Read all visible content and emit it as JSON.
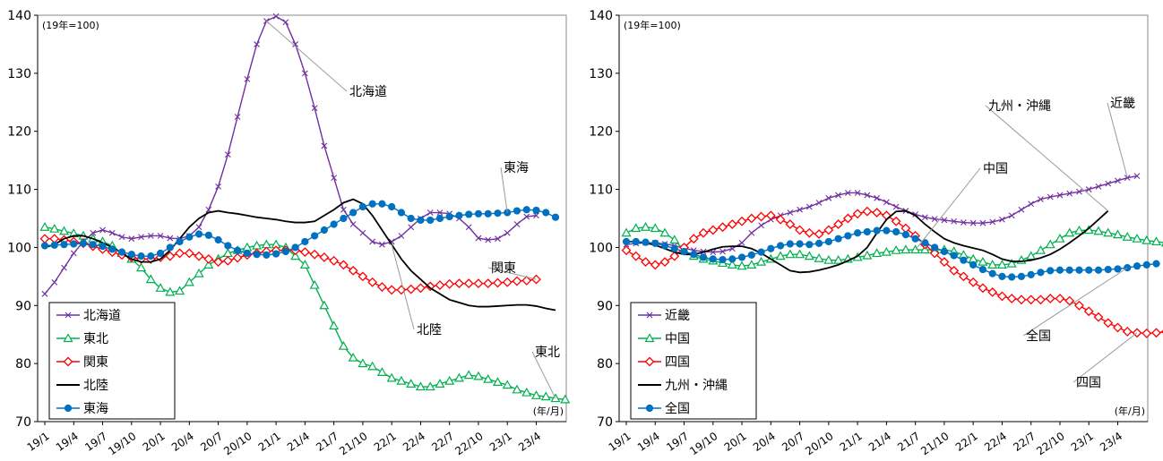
{
  "chart_data": [
    {
      "type": "line",
      "unit_note": "(19年=100)",
      "x_unit": "(年/月)",
      "ylim": [
        70,
        140
      ],
      "yticks": [
        70,
        80,
        90,
        100,
        110,
        120,
        130,
        140
      ],
      "grid": false,
      "legend_position": "bottom-left",
      "x_tick_labels": [
        "19/1",
        "19/4",
        "19/7",
        "19/10",
        "20/1",
        "20/4",
        "20/7",
        "20/10",
        "21/1",
        "21/4",
        "21/7",
        "21/10",
        "22/1",
        "22/4",
        "22/7",
        "22/10",
        "23/1",
        "23/4"
      ],
      "series": [
        {
          "name": "北海道",
          "color": "#7030a0",
          "marker": "x",
          "values": [
            92,
            94,
            96.5,
            99,
            101,
            102.5,
            103,
            102.5,
            101.8,
            101.5,
            101.8,
            102,
            102,
            101.6,
            101.5,
            102,
            103.5,
            106.5,
            110.5,
            116,
            122.5,
            129,
            135,
            139,
            139.8,
            138.8,
            135,
            130,
            124,
            117.5,
            112,
            106.5,
            104,
            102.5,
            101,
            100.5,
            101,
            102,
            103.5,
            105,
            106,
            106,
            105.8,
            105,
            103.5,
            101.6,
            101.3,
            101.5,
            102.5,
            104,
            105.3,
            105.5
          ]
        },
        {
          "name": "東北",
          "color": "#00b050",
          "marker": "triangle",
          "values": [
            103.5,
            103.2,
            102.8,
            102.4,
            102,
            101.5,
            101,
            100.3,
            99,
            98,
            96.5,
            94.5,
            93,
            92.3,
            92.5,
            94,
            95.5,
            97,
            98,
            99,
            99.5,
            100,
            100.3,
            100.5,
            100.5,
            100,
            98.5,
            97,
            93.5,
            90,
            86.5,
            83,
            81,
            80,
            79.5,
            78.5,
            77.5,
            77,
            76.5,
            76,
            76,
            76.5,
            77,
            77.5,
            78,
            77.8,
            77.3,
            76.8,
            76.3,
            75.5,
            75,
            74.5,
            74.3,
            74,
            73.8
          ]
        },
        {
          "name": "関東",
          "color": "#ff0000",
          "marker": "diamond",
          "values": [
            101.5,
            101.5,
            101.3,
            101,
            100.7,
            100.2,
            99.7,
            99.2,
            98.7,
            98.3,
            98,
            98,
            98.3,
            98.5,
            99,
            99,
            98.5,
            98,
            97.5,
            97.7,
            98.2,
            98.7,
            99,
            99.3,
            99.5,
            99.5,
            99.5,
            99.2,
            98.8,
            98.3,
            97.7,
            97,
            96,
            95,
            94,
            93.2,
            92.7,
            92.7,
            92.8,
            93,
            93.3,
            93.5,
            93.7,
            93.8,
            93.8,
            93.8,
            93.8,
            93.9,
            94,
            94.2,
            94.3,
            94.5
          ]
        },
        {
          "name": "北陸",
          "color": "#000000",
          "marker": "none",
          "values": [
            100,
            100.5,
            101.5,
            102,
            102,
            101.5,
            100.8,
            100,
            99,
            98,
            97.5,
            97.5,
            98,
            99.5,
            101.5,
            103.5,
            105,
            106,
            106.3,
            106,
            105.8,
            105.5,
            105.2,
            105,
            104.8,
            104.5,
            104.3,
            104.3,
            104.5,
            105.5,
            106.5,
            107.7,
            108.3,
            107.5,
            105.5,
            103,
            100.5,
            98,
            96,
            94.5,
            93,
            92,
            91,
            90.5,
            90,
            89.8,
            89.8,
            89.9,
            90,
            90.1,
            90.1,
            89.9,
            89.5,
            89.2
          ]
        },
        {
          "name": "東海",
          "color": "#0070c0",
          "marker": "circle",
          "values": [
            100.3,
            100.4,
            100.5,
            100.6,
            100.7,
            100.5,
            100.2,
            99.7,
            99.2,
            98.8,
            98.5,
            98.5,
            99,
            100,
            101,
            101.8,
            102.3,
            102.1,
            101.3,
            100.3,
            99.5,
            99,
            98.8,
            98.7,
            98.9,
            99.3,
            100,
            101,
            102,
            103,
            104,
            105,
            106,
            107,
            107.5,
            107.5,
            107,
            106,
            105,
            104.7,
            104.7,
            105,
            105.3,
            105.5,
            105.7,
            105.8,
            105.8,
            105.9,
            106,
            106.3,
            106.5,
            106.4,
            106,
            105.2
          ]
        }
      ],
      "callouts": [
        "北海道",
        "東海",
        "関東",
        "北陸",
        "東北"
      ]
    },
    {
      "type": "line",
      "unit_note": "(19年=100)",
      "x_unit": "(年/月)",
      "ylim": [
        70,
        140
      ],
      "yticks": [
        70,
        80,
        90,
        100,
        110,
        120,
        130,
        140
      ],
      "grid": false,
      "legend_position": "bottom-left",
      "x_tick_labels": [
        "19/1",
        "19/4",
        "19/7",
        "19/10",
        "20/1",
        "20/4",
        "20/7",
        "20/10",
        "21/1",
        "21/4",
        "21/7",
        "21/10",
        "22/1",
        "22/4",
        "22/7",
        "22/10",
        "23/1",
        "23/4"
      ],
      "series": [
        {
          "name": "近畿",
          "color": "#7030a0",
          "marker": "x",
          "values": [
            100.5,
            100.7,
            100.8,
            100.8,
            100.6,
            100.3,
            99.9,
            99.5,
            99.3,
            99.2,
            99.3,
            99.8,
            100.8,
            102.5,
            103.8,
            104.8,
            105.5,
            106,
            106.5,
            107,
            107.7,
            108.5,
            109,
            109.4,
            109.4,
            109,
            108.5,
            107.8,
            107,
            106.3,
            105.7,
            105.2,
            104.9,
            104.7,
            104.5,
            104.3,
            104.2,
            104.2,
            104.4,
            104.8,
            105.5,
            106.5,
            107.5,
            108.3,
            108.7,
            109,
            109.3,
            109.6,
            110,
            110.5,
            111,
            111.5,
            112,
            112.3
          ]
        },
        {
          "name": "中国",
          "color": "#00b050",
          "marker": "triangle",
          "values": [
            102.5,
            103.3,
            103.5,
            103.3,
            102.5,
            101.3,
            99.5,
            98.5,
            98,
            97.7,
            97.3,
            97,
            96.8,
            97,
            97.5,
            98,
            98.5,
            98.8,
            98.8,
            98.5,
            98.1,
            97.8,
            97.8,
            98,
            98.3,
            98.6,
            99,
            99.2,
            99.5,
            99.6,
            99.6,
            99.6,
            99.6,
            99.6,
            99.3,
            98.7,
            98,
            97.5,
            97,
            97,
            97.2,
            97.8,
            98.5,
            99.5,
            100.5,
            101.5,
            102.5,
            102.9,
            103,
            102.8,
            102.5,
            102.2,
            101.8,
            101.5,
            101.2,
            101,
            100.8,
            100.3,
            100
          ]
        },
        {
          "name": "四国",
          "color": "#ff0000",
          "marker": "diamond",
          "values": [
            99.5,
            98.5,
            97.5,
            97,
            97.5,
            98.5,
            100,
            101.5,
            102.5,
            103,
            103.5,
            104,
            104.5,
            105,
            105.3,
            105.5,
            104.8,
            104,
            103,
            102.5,
            102.3,
            103,
            104,
            105,
            105.8,
            106.2,
            106,
            105.5,
            104.5,
            103.3,
            102,
            100.5,
            99,
            97.5,
            96,
            95,
            94,
            93,
            92.3,
            91.6,
            91.2,
            91,
            91,
            91,
            91.2,
            91.2,
            90.8,
            90,
            89,
            88,
            87,
            86.2,
            85.5,
            85.3,
            85.2,
            85.3,
            85.5,
            85.7
          ]
        },
        {
          "name": "九州・沖縄",
          "color": "#000000",
          "marker": "none",
          "values": [
            101,
            101,
            100.8,
            100.4,
            99.8,
            99.2,
            98.8,
            98.8,
            99.2,
            99.7,
            100.1,
            100.2,
            100.2,
            99.8,
            99,
            98,
            97,
            96,
            95.7,
            95.8,
            96.1,
            96.5,
            97,
            97.7,
            98.5,
            100,
            102.5,
            104.8,
            106.2,
            106.3,
            105.5,
            104,
            102.7,
            101.5,
            100.8,
            100.3,
            99.9,
            99.5,
            98.8,
            98,
            97.6,
            97.6,
            97.8,
            98.2,
            98.8,
            99.7,
            100.8,
            102,
            103.3,
            104.8,
            106.3
          ]
        },
        {
          "name": "全国",
          "color": "#0070c0",
          "marker": "circle",
          "values": [
            101,
            101,
            100.9,
            100.7,
            100.3,
            99.8,
            99.3,
            98.8,
            98.3,
            98,
            97.9,
            98,
            98.3,
            98.7,
            99.2,
            99.8,
            100.3,
            100.6,
            100.6,
            100.5,
            100.7,
            101,
            101.5,
            102,
            102.5,
            102.7,
            102.9,
            102.9,
            102.7,
            102.2,
            101.5,
            100.8,
            100,
            99.3,
            98.6,
            97.8,
            97,
            96.2,
            95.5,
            95,
            94.9,
            95,
            95.3,
            95.7,
            96,
            96.1,
            96.1,
            96.1,
            96.1,
            96.1,
            96.2,
            96.3,
            96.5,
            96.8,
            97,
            97.2
          ]
        }
      ],
      "callouts": [
        "近畿",
        "九州・沖縄",
        "中国",
        "全国",
        "四国"
      ]
    }
  ]
}
